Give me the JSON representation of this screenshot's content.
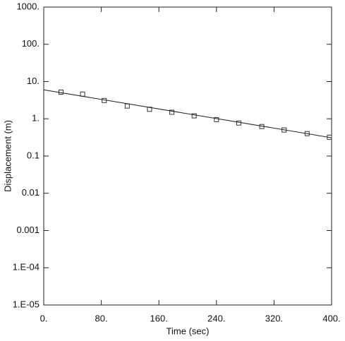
{
  "chart_data": {
    "type": "scatter",
    "x_label": "Time (sec)",
    "y_label": "Displacement (m)",
    "xlim": [
      0,
      400
    ],
    "ylim": [
      1e-05,
      1000
    ],
    "log_y": true,
    "xticks": [
      {
        "value": 0,
        "label": "0."
      },
      {
        "value": 80,
        "label": "80."
      },
      {
        "value": 160,
        "label": "160."
      },
      {
        "value": 240,
        "label": "240."
      },
      {
        "value": 320,
        "label": "320."
      },
      {
        "value": 400,
        "label": "400."
      }
    ],
    "yticks": [
      {
        "value": 1e-05,
        "label": "1.E-05"
      },
      {
        "value": 0.0001,
        "label": "1.E-04"
      },
      0.001,
      0.01,
      0.1,
      {
        "value": 1,
        "label": "1."
      },
      {
        "value": 10,
        "label": "10."
      },
      {
        "value": 100,
        "label": "100."
      },
      {
        "value": 1000,
        "label": "1000."
      }
    ],
    "series": [
      {
        "style": "markers",
        "marker": "square",
        "color": "#333333",
        "x": [
          24,
          54,
          84,
          116,
          147,
          178,
          209,
          240,
          271,
          303,
          334,
          366,
          397
        ],
        "values": [
          5.2,
          4.6,
          3.1,
          2.2,
          1.8,
          1.5,
          1.2,
          0.95,
          0.77,
          0.62,
          0.5,
          0.4,
          0.32
        ]
      },
      {
        "style": "line",
        "color": "#222222",
        "x": [
          0,
          400
        ],
        "values": [
          6.0,
          0.31
        ]
      }
    ]
  }
}
